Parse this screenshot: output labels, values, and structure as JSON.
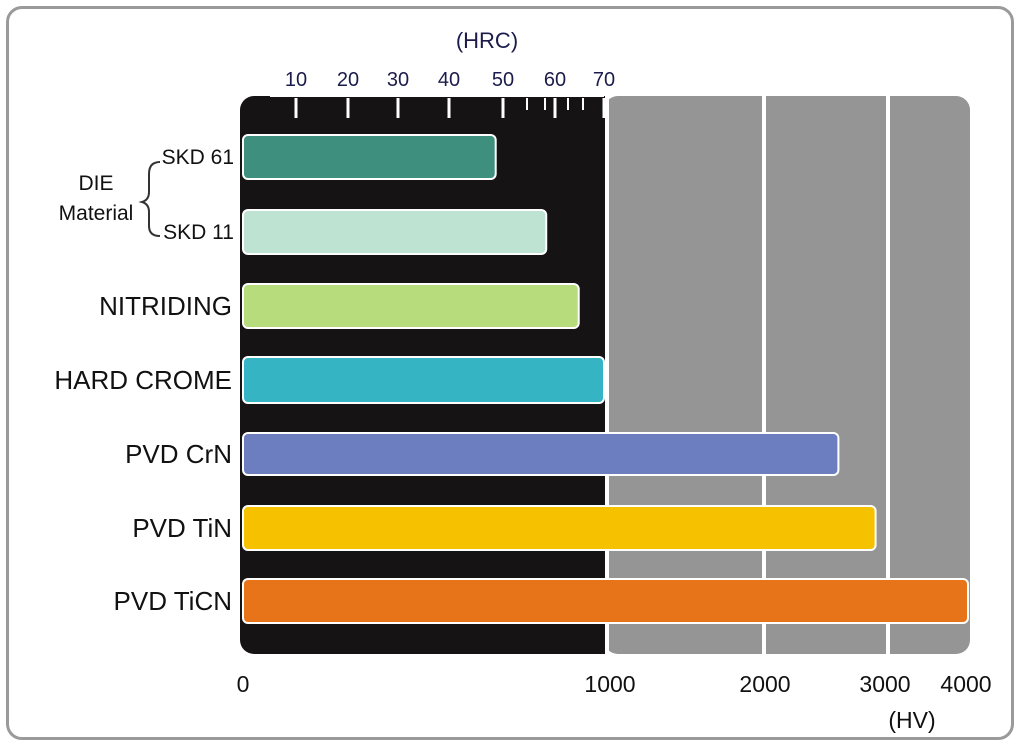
{
  "chart_data": {
    "type": "bar",
    "orientation": "horizontal",
    "hv_axis": {
      "unit_label": "(HV)",
      "ticks": [
        "0",
        "1000",
        "2000",
        "3000",
        "4000"
      ],
      "range": [
        0,
        4000
      ]
    },
    "hrc_axis": {
      "title": "(HRC)",
      "ticks": [
        "10",
        "20",
        "30",
        "40",
        "50",
        "60",
        "70"
      ]
    },
    "group_label": [
      "DIE",
      "Material"
    ],
    "bars": [
      {
        "label": "SKD 61",
        "value": 700,
        "color": "#3e8f7e"
      },
      {
        "label": "SKD 11",
        "value": 840,
        "color": "#bfe3d3"
      },
      {
        "label": "NITRIDING",
        "value": 930,
        "color": "#b6dc7c"
      },
      {
        "label": "HARD CROME",
        "value": 1000,
        "color": "#35b4c4"
      },
      {
        "label": "PVD CrN",
        "value": 2600,
        "color": "#6c7ec0"
      },
      {
        "label": "PVD TiN",
        "value": 2900,
        "color": "#f6c200"
      },
      {
        "label": "PVD TiCN",
        "value": 4000,
        "color": "#e77419"
      }
    ]
  }
}
